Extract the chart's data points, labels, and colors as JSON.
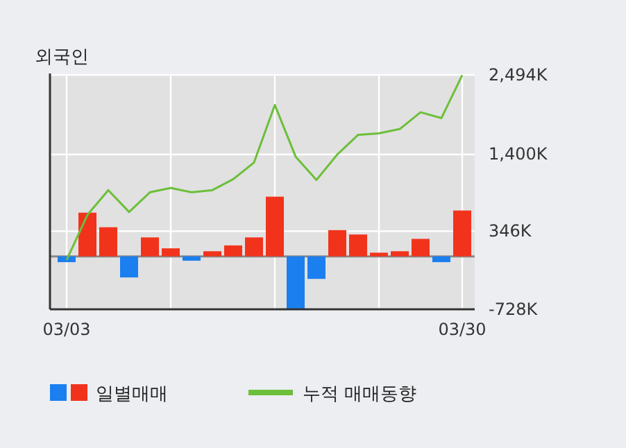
{
  "chart_data": {
    "type": "bar",
    "title": "외국인",
    "categories": [
      "03/03",
      null,
      null,
      null,
      null,
      null,
      null,
      null,
      null,
      null,
      null,
      null,
      null,
      null,
      null,
      null,
      null,
      null,
      null,
      "03/30"
    ],
    "series": [
      {
        "name": "일별매매",
        "colors": [
          "#1b7ff0",
          "#f2331c",
          "#f2331c",
          "#1b7ff0",
          "#f2331c",
          "#f2331c",
          "#1b7ff0",
          "#f2331c",
          "#f2331c",
          "#f2331c",
          "#f2331c",
          "#1b7ff0",
          "#1b7ff0",
          "#f2331c",
          "#f2331c",
          "#f2331c",
          "#f2331c",
          "#f2331c",
          "#1b7ff0",
          "#f2331c"
        ],
        "values": [
          -80,
          600,
          400,
          -290,
          260,
          110,
          -60,
          70,
          150,
          260,
          820,
          -720,
          -310,
          360,
          300,
          50,
          70,
          240,
          -80,
          630
        ]
      },
      {
        "name": "누적 매매동향",
        "type": "line",
        "color": "#6cbf3a",
        "values": [
          -50,
          570,
          910,
          610,
          880,
          940,
          880,
          910,
          1060,
          1290,
          2080,
          1370,
          1050,
          1400,
          1670,
          1690,
          1750,
          1980,
          1900,
          2490
        ]
      }
    ],
    "ylim": [
      -728,
      2494
    ],
    "yticks": [
      {
        "value": -728,
        "label": "-728K"
      },
      {
        "value": 346,
        "label": "346K"
      },
      {
        "value": 1400,
        "label": "1,400K"
      },
      {
        "value": 2494,
        "label": "2,494K"
      }
    ],
    "grid": true,
    "legend": "bottom"
  }
}
